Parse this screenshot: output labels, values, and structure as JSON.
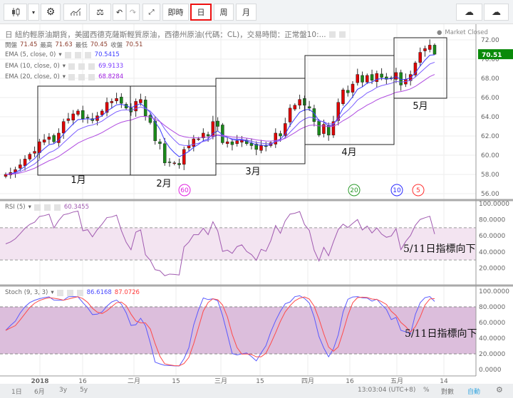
{
  "toolbar": {
    "realtime": "即時",
    "day": "日",
    "week": "周",
    "month": "月",
    "selected": "日"
  },
  "header": {
    "title": "日 紐約輕原油期貨，美國西德克薩斯輕質原油，西德州原油(代碼：CL)，交易時間：正常盤10:...",
    "status": "Market Closed",
    "ohlc": {
      "open_label": "開盤",
      "open": "71.45",
      "high_label": "最高",
      "high": "71.63",
      "low_label": "最低",
      "low": "70.45",
      "close_label": "收盤",
      "close": "70.51"
    }
  },
  "indicators": {
    "ema5": {
      "label": "EMA (5, close, 0)",
      "value": "70.5415",
      "color": "#3b3bff"
    },
    "ema10": {
      "label": "EMA (10, close, 0)",
      "value": "69.9133",
      "color": "#7a5cff"
    },
    "ema20": {
      "label": "EMA (20, close, 0)",
      "value": "68.8284",
      "color": "#b04ce0"
    },
    "rsi": {
      "label": "RSI (5)",
      "value": "60.3455",
      "color": "#a05ab0"
    },
    "stoch": {
      "label": "Stoch (9, 3, 3)",
      "k": "86.6168",
      "d": "87.0726",
      "k_color": "#5a5aff",
      "d_color": "#ff4a4a"
    }
  },
  "price_axis": [
    "72.00",
    "70.00",
    "68.00",
    "66.00",
    "64.00",
    "62.00",
    "60.00",
    "58.00",
    "56.00"
  ],
  "last_price": "70.51",
  "rsi_axis": [
    "100.0000",
    "80.0000",
    "60.0000",
    "40.0000",
    "20.0000"
  ],
  "stoch_axis": [
    "100.0000",
    "80.0000",
    "60.0000",
    "40.0000",
    "20.0000",
    "0.0000"
  ],
  "time_axis": [
    "2018",
    "16",
    "二月",
    "15",
    "三月",
    "15",
    "四月",
    "16",
    "五月",
    "14"
  ],
  "month_boxes": [
    "1月",
    "2月",
    "3月",
    "4月",
    "5月"
  ],
  "period_markers": [
    {
      "label": "60",
      "color": "#e020e0"
    },
    {
      "label": "20",
      "color": "#2a9a2a"
    },
    {
      "label": "10",
      "color": "#2a2aff"
    },
    {
      "label": "5",
      "color": "#ff3030"
    }
  ],
  "annotation": "5/11日指標向下",
  "footer": {
    "ranges": [
      "1日",
      "6月",
      "3y",
      "5y"
    ],
    "time": "13:03:04 (UTC+8)",
    "percent": "%",
    "log": "對數",
    "auto": "自動"
  },
  "colors": {
    "up": "#e00000",
    "down": "#1a8a1a"
  },
  "closes": [
    58.0,
    58.2,
    58.5,
    59.0,
    59.6,
    60.1,
    60.4,
    61.4,
    61.6,
    61.9,
    61.4,
    62.3,
    63.5,
    63.8,
    64.3,
    64.6,
    63.8,
    63.9,
    63.6,
    64.1,
    64.6,
    65.5,
    65.6,
    65.9,
    65.4,
    64.9,
    64.5,
    65.6,
    65.8,
    64.1,
    63.4,
    61.5,
    61.2,
    59.2,
    59.3,
    59.2,
    59.0,
    60.6,
    61.0,
    61.7,
    61.7,
    62.3,
    62.0,
    63.5,
    63.0,
    61.3,
    61.4,
    61.1,
    61.5,
    61.6,
    61.2,
    61.0,
    60.6,
    61.0,
    60.9,
    61.3,
    62.3,
    62.0,
    63.3,
    64.9,
    65.2,
    65.8,
    65.2,
    64.9,
    63.5,
    62.1,
    63.2,
    62.1,
    63.5,
    65.5,
    66.8,
    66.5,
    67.4,
    68.4,
    67.6,
    68.3,
    67.8,
    68.5,
    68.1,
    67.9,
    68.0,
    68.6,
    67.3,
    67.9,
    68.4,
    69.6,
    70.7,
    71.1,
    71.45,
    70.51
  ]
}
